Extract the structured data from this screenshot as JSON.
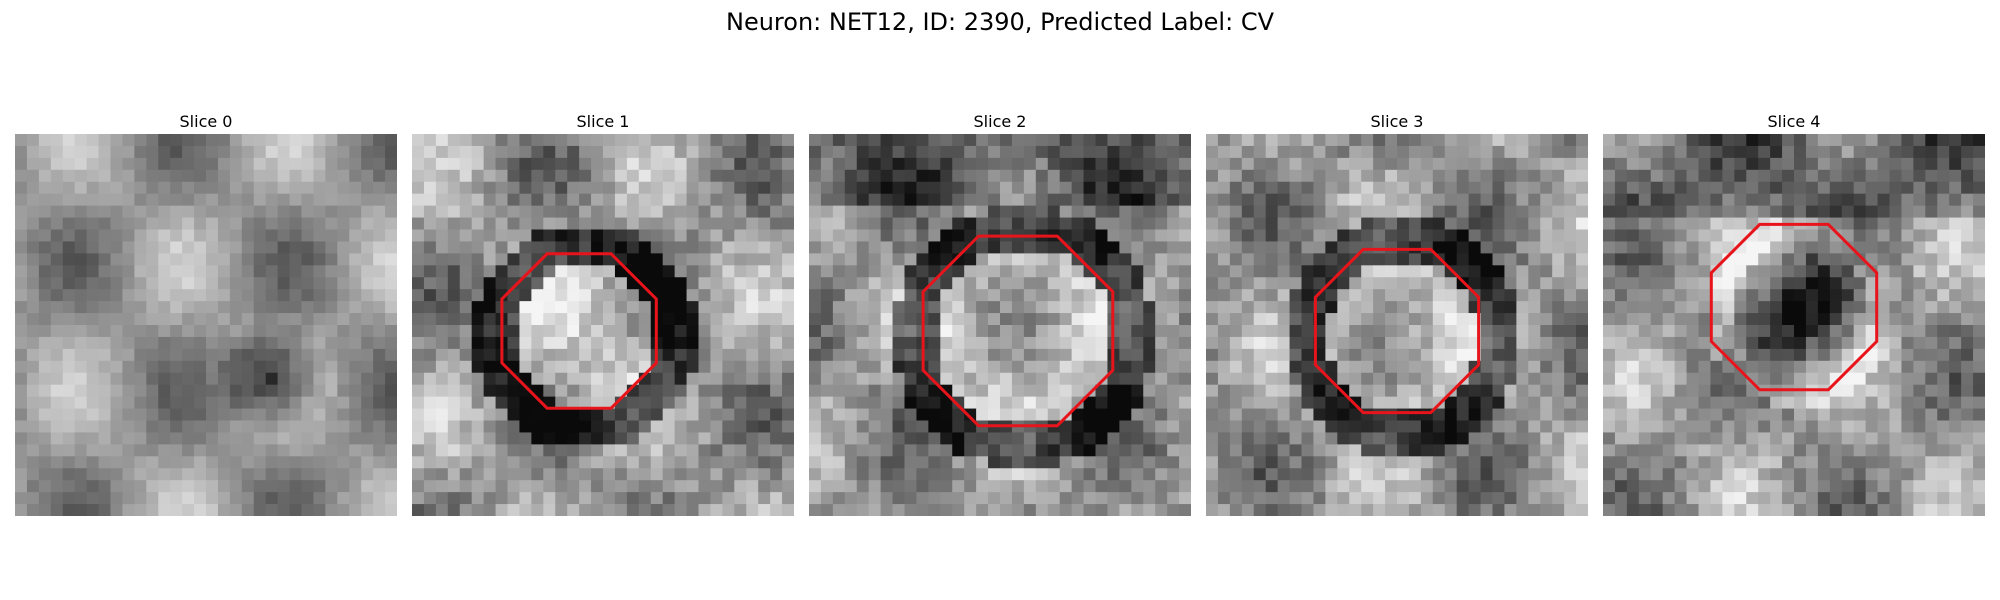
{
  "figure": {
    "title": "Neuron: NET12, ID: 2390, Predicted Label: CV"
  },
  "slices": [
    {
      "title": "Slice 0",
      "has_outline": false,
      "dark_blob": "lower-center",
      "outline_color": "#e8141b"
    },
    {
      "title": "Slice 1",
      "has_outline": true,
      "dark_blob": "ring",
      "outline_color": "#e8141b"
    },
    {
      "title": "Slice 2",
      "has_outline": true,
      "dark_blob": "ring",
      "outline_color": "#e8141b"
    },
    {
      "title": "Slice 3",
      "has_outline": true,
      "dark_blob": "ring",
      "outline_color": "#e8141b"
    },
    {
      "title": "Slice 4",
      "has_outline": true,
      "dark_blob": "center",
      "outline_color": "#e8141b"
    }
  ]
}
